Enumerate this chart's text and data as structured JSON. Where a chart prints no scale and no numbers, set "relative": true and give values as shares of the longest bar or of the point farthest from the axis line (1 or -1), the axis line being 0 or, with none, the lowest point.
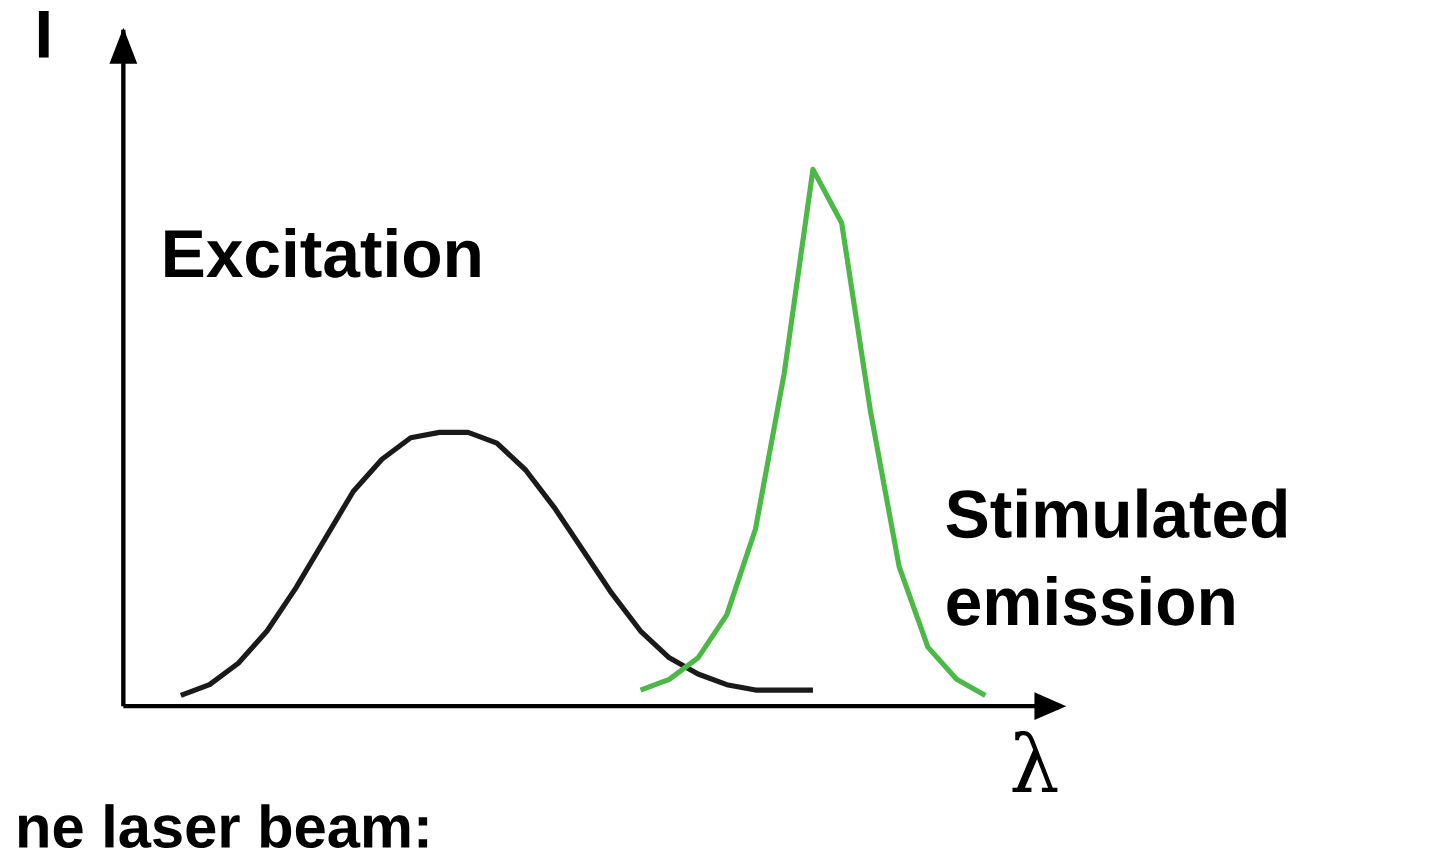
{
  "chart_data": {
    "type": "line",
    "relative": true,
    "xlabel": "λ",
    "ylabel": "I",
    "categories": [
      null,
      null,
      null,
      null,
      null,
      null,
      null,
      null,
      null,
      null,
      null,
      null,
      null,
      null,
      null,
      null,
      null,
      null,
      null,
      null,
      null,
      null,
      null,
      null,
      null,
      null,
      null,
      null,
      null
    ],
    "series": [
      {
        "name": "Excitation",
        "color": "#1a1a1a",
        "values": [
          0.02,
          0.04,
          0.08,
          0.14,
          0.22,
          0.31,
          0.4,
          0.46,
          0.5,
          0.51,
          0.51,
          0.49,
          0.44,
          0.37,
          0.29,
          0.21,
          0.14,
          0.09,
          0.06,
          0.04,
          0.03,
          0.03,
          0.03,
          null,
          null,
          null,
          null,
          null,
          null
        ]
      },
      {
        "name": "Stimulated emission",
        "color": "#4cb848",
        "values": [
          null,
          null,
          null,
          null,
          null,
          null,
          null,
          null,
          null,
          null,
          null,
          null,
          null,
          null,
          null,
          null,
          0.03,
          0.05,
          0.09,
          0.17,
          0.33,
          0.62,
          1,
          0.9,
          0.55,
          0.26,
          0.11,
          0.05,
          0.02
        ]
      }
    ],
    "annotations": [
      "ne laser beam:"
    ]
  }
}
